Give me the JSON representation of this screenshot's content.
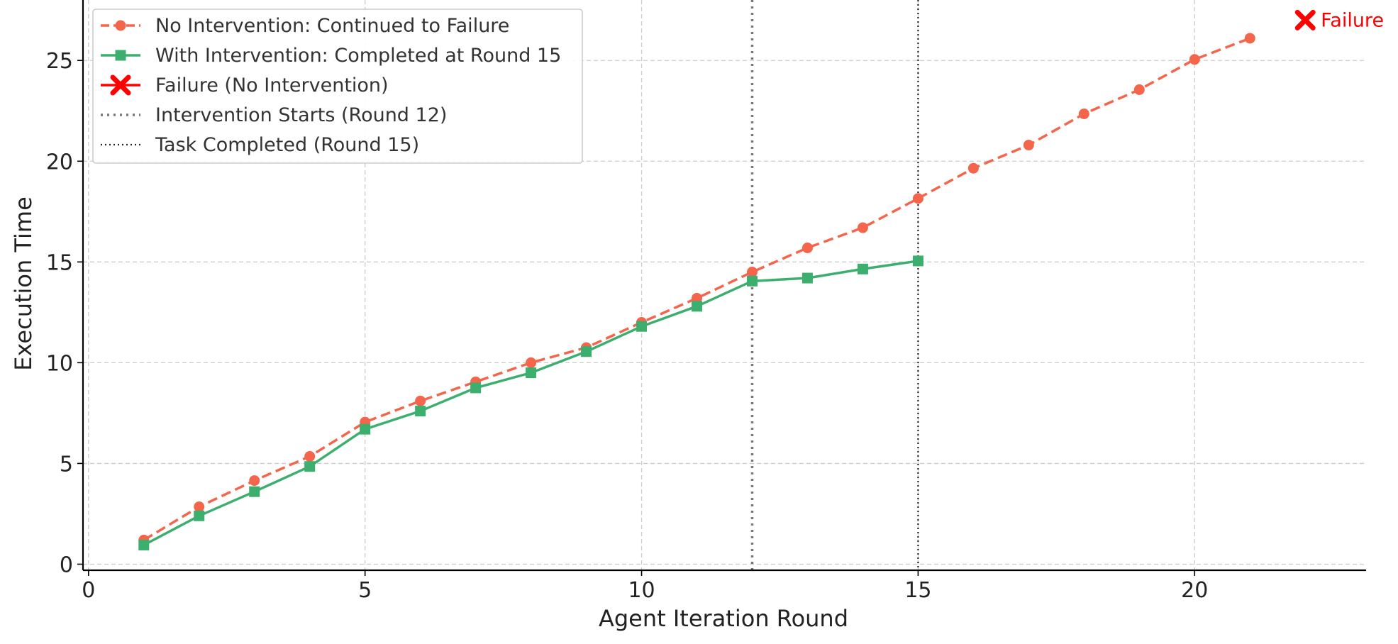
{
  "chart_data": {
    "type": "line",
    "title": "",
    "xlabel": "Agent Iteration Round",
    "ylabel": "Execution Time",
    "xlim": [
      -0.1,
      23.1
    ],
    "ylim": [
      -0.3,
      28
    ],
    "xticks": [
      0,
      5,
      10,
      15,
      20
    ],
    "yticks": [
      0,
      5,
      10,
      15,
      20,
      25
    ],
    "grid": true,
    "legend_position": "top-left",
    "series": [
      {
        "name": "No Intervention: Continued to Failure",
        "color": "#f4654b",
        "line_style": "dashed",
        "marker": "circle",
        "x": [
          1,
          2,
          3,
          4,
          5,
          6,
          7,
          8,
          9,
          10,
          11,
          12,
          13,
          14,
          15,
          16,
          17,
          18,
          19,
          20,
          21
        ],
        "y": [
          1.2,
          2.85,
          4.15,
          5.35,
          7.05,
          8.1,
          9.05,
          10.0,
          10.75,
          12.0,
          13.2,
          14.5,
          15.7,
          16.7,
          18.15,
          19.65,
          20.8,
          22.35,
          23.55,
          25.05,
          26.1
        ]
      },
      {
        "name": "With Intervention: Completed at Round 15",
        "color": "#3caf6e",
        "line_style": "solid",
        "marker": "square",
        "x": [
          1,
          2,
          3,
          4,
          5,
          6,
          7,
          8,
          9,
          10,
          11,
          12,
          13,
          14,
          15
        ],
        "y": [
          0.95,
          2.4,
          3.6,
          4.85,
          6.7,
          7.6,
          8.75,
          9.5,
          10.55,
          11.8,
          12.8,
          14.05,
          14.2,
          14.65,
          15.05
        ]
      },
      {
        "name": "Failure (No Intervention)",
        "color": "#ff0000",
        "marker": "x",
        "x": [
          22
        ],
        "y": [
          27.0
        ]
      }
    ],
    "vlines": [
      {
        "name": "Intervention Starts (Round 12)",
        "x": 12,
        "color": "#777777",
        "style": "dotted-coarse"
      },
      {
        "name": "Task Completed (Round 15)",
        "x": 15,
        "color": "#222222",
        "style": "dotted-fine"
      }
    ],
    "annotations": [
      {
        "text": "Failure",
        "x": 22,
        "y": 27.0,
        "color": "#ff0000"
      }
    ]
  }
}
